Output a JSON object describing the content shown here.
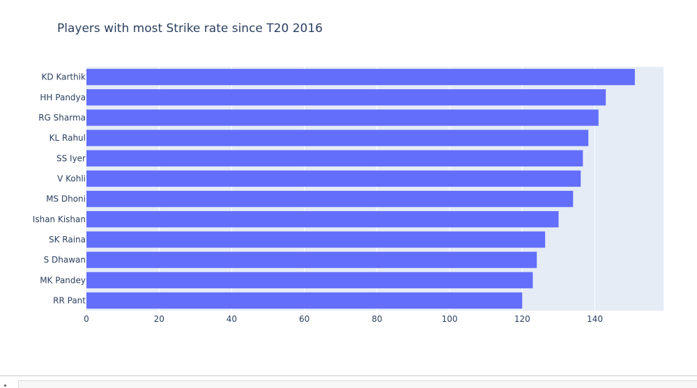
{
  "chart_data": {
    "type": "bar",
    "orientation": "horizontal",
    "title": "Players with most Strike rate since T20 2016",
    "xlabel": "",
    "ylabel": "",
    "categories": [
      "KD Karthik",
      "HH Pandya",
      "RG Sharma",
      "KL Rahul",
      "SS Iyer",
      "V Kohli",
      "MS Dhoni",
      "Ishan Kishan",
      "SK Raina",
      "S Dhawan",
      "MK Pandey",
      "RR Pant"
    ],
    "values": [
      151.0,
      143.0,
      141.0,
      138.2,
      136.7,
      136.1,
      134.0,
      130.0,
      126.3,
      124.0,
      122.9,
      120.0
    ],
    "xlim": [
      0,
      158.9
    ],
    "xticks": [
      0,
      20,
      40,
      60,
      80,
      100,
      120,
      140
    ],
    "grid": true,
    "colors": {
      "bar": "#636efa",
      "plot_bg": "#e5ecf6",
      "grid": "#ffffff",
      "text": "#2a3f5f"
    }
  }
}
